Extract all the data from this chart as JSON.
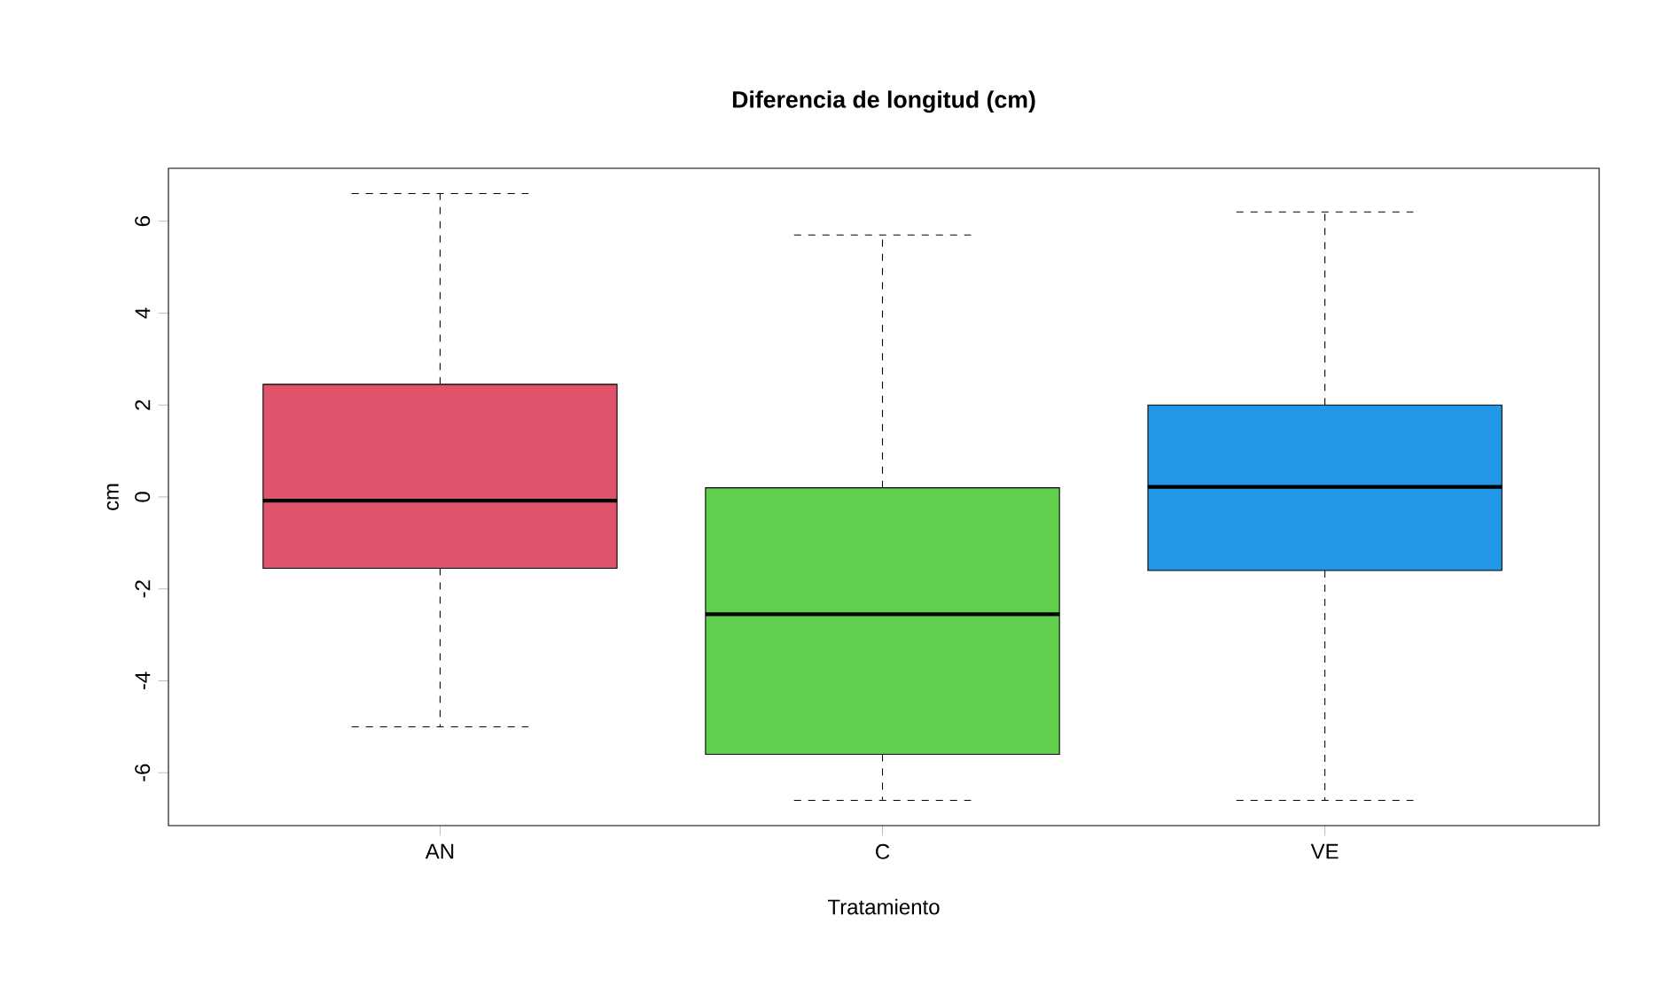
{
  "chart_data": {
    "type": "box",
    "title": "Diferencia de longitud (cm)",
    "xlabel": "Tratamiento",
    "ylabel": "cm",
    "categories": [
      "AN",
      "C",
      "VE"
    ],
    "colors": [
      "#df536b",
      "#61d04f",
      "#2297e6"
    ],
    "boxes": [
      {
        "low": -5.0,
        "q1": -1.55,
        "median": -0.08,
        "q3": 2.45,
        "high": 6.6
      },
      {
        "low": -6.6,
        "q1": -5.6,
        "median": -2.55,
        "q3": 0.2,
        "high": 5.7
      },
      {
        "low": -6.6,
        "q1": -1.6,
        "median": 0.22,
        "q3": 2.0,
        "high": 6.2
      }
    ],
    "ylim": [
      -7.15,
      7.15
    ],
    "yticks": [
      -6,
      -4,
      -2,
      0,
      2,
      4,
      6
    ]
  }
}
